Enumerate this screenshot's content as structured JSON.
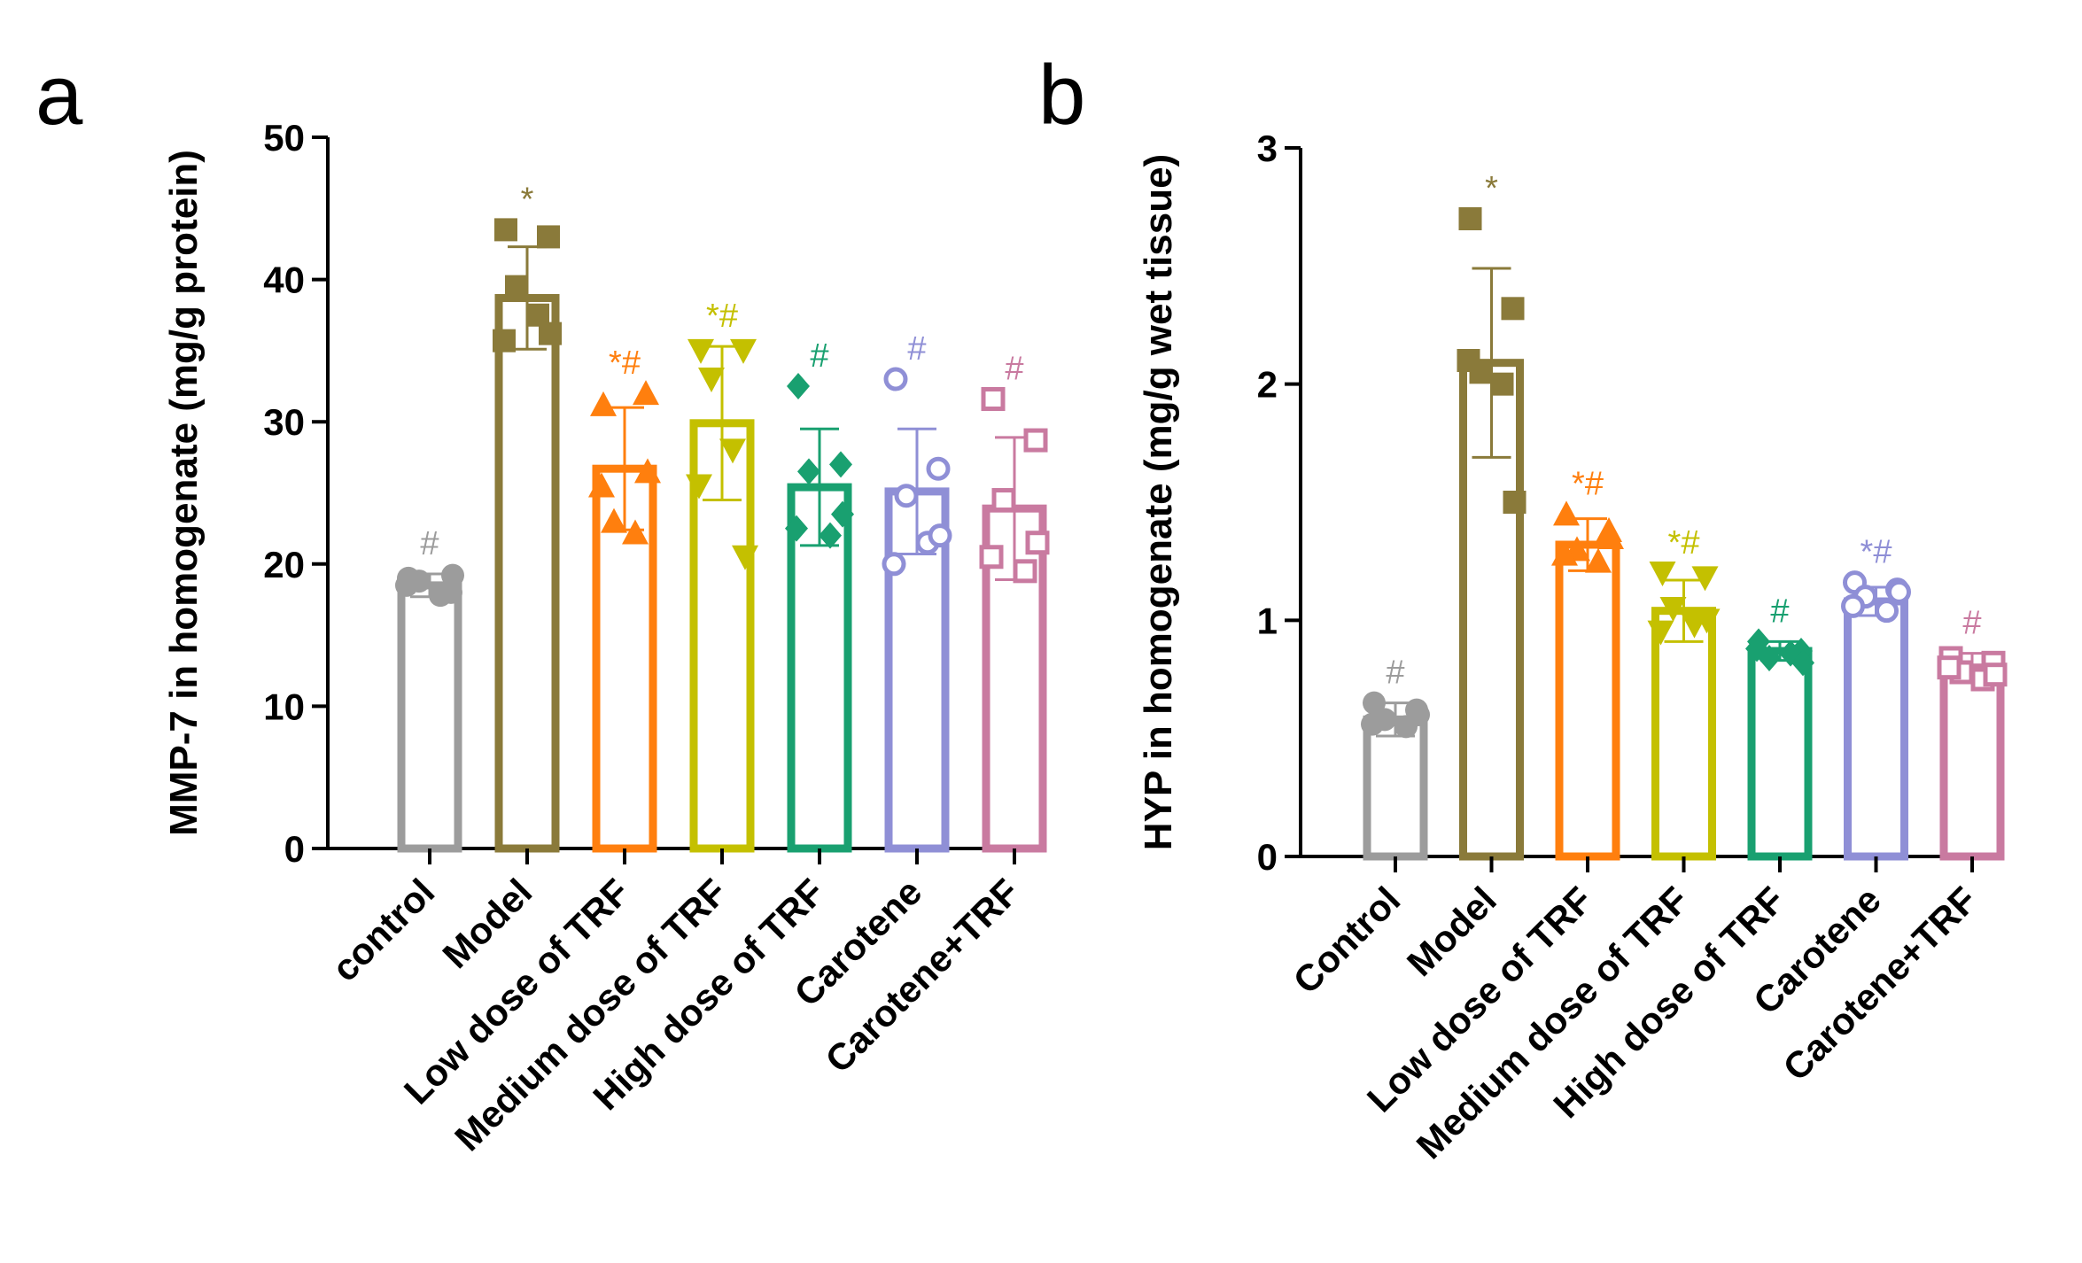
{
  "chart_data": [
    {
      "type": "bar",
      "panel_label": "a",
      "ylabel": "MMP-7 in homogenate (mg/g protein)",
      "ylim": [
        0,
        50
      ],
      "yticks": [
        "0",
        "10",
        "20",
        "30",
        "40",
        "50"
      ],
      "categories": [
        "control",
        "Model",
        "Low dose of TRF",
        "Medium dose of TRF",
        "High dose of TRF",
        "Carotene",
        "Carotene+TRF"
      ],
      "colors": [
        "#9c9c9c",
        "#8a7a3a",
        "#ff7f0e",
        "#c4c000",
        "#19a070",
        "#8f8fd6",
        "#c97aa0"
      ],
      "markers": [
        "circle",
        "square",
        "triangle-up",
        "triangle-down",
        "diamond",
        "circle-open",
        "square-open"
      ],
      "values": [
        18.5,
        38.7,
        26.7,
        29.9,
        25.4,
        25.1,
        23.9
      ],
      "sd": [
        0.8,
        3.6,
        4.3,
        5.4,
        4.1,
        4.4,
        5.0
      ],
      "points": [
        [
          19.0,
          18.0,
          18.8,
          17.8,
          18.5,
          19.2
        ],
        [
          43.5,
          43.0,
          39.5,
          37.5,
          35.7,
          36.2
        ],
        [
          31.2,
          32.0,
          23.0,
          22.2,
          25.5,
          26.5
        ],
        [
          35.0,
          35.0,
          33.0,
          28.0,
          25.5,
          20.5
        ],
        [
          32.5,
          27.0,
          26.5,
          22.0,
          22.5,
          23.5
        ],
        [
          33.0,
          26.7,
          24.8,
          21.5,
          20.0,
          22.0
        ],
        [
          31.6,
          28.7,
          24.5,
          19.5,
          20.5,
          21.5
        ]
      ],
      "annotations": [
        "#",
        "*",
        "*#",
        "*#",
        "#",
        "#",
        "#"
      ]
    },
    {
      "type": "bar",
      "panel_label": "b",
      "ylabel": "HYP in homogenate (mg/g wet tissue)",
      "ylim": [
        0,
        3
      ],
      "yticks": [
        "0",
        "1",
        "2",
        "3"
      ],
      "categories": [
        "Control",
        "Model",
        "Low dose of TRF",
        "Medium dose of TRF",
        "High dose of TRF",
        "Carotene",
        "Carotene+TRF"
      ],
      "colors": [
        "#9c9c9c",
        "#8a7a3a",
        "#ff7f0e",
        "#c4c000",
        "#19a070",
        "#8f8fd6",
        "#c97aa0"
      ],
      "markers": [
        "circle",
        "square",
        "triangle-up",
        "triangle-down",
        "diamond",
        "circle-open",
        "square-open"
      ],
      "values": [
        0.58,
        2.09,
        1.32,
        1.04,
        0.87,
        1.08,
        0.8
      ],
      "sd": [
        0.07,
        0.4,
        0.11,
        0.13,
        0.04,
        0.06,
        0.06
      ],
      "points": [
        [
          0.65,
          0.62,
          0.58,
          0.55,
          0.56,
          0.6
        ],
        [
          2.7,
          2.32,
          2.05,
          2.0,
          2.1,
          1.5
        ],
        [
          1.45,
          1.38,
          1.3,
          1.25,
          1.28,
          1.35
        ],
        [
          1.2,
          1.18,
          1.05,
          0.98,
          0.95,
          1.0
        ],
        [
          0.91,
          0.87,
          0.84,
          0.86,
          0.88,
          0.82
        ],
        [
          1.16,
          1.13,
          1.1,
          1.04,
          1.06,
          1.12
        ],
        [
          0.84,
          0.82,
          0.78,
          0.75,
          0.8,
          0.77
        ]
      ],
      "annotations": [
        "#",
        "*",
        "*#",
        "*#",
        "#",
        "*#",
        "#"
      ]
    }
  ]
}
